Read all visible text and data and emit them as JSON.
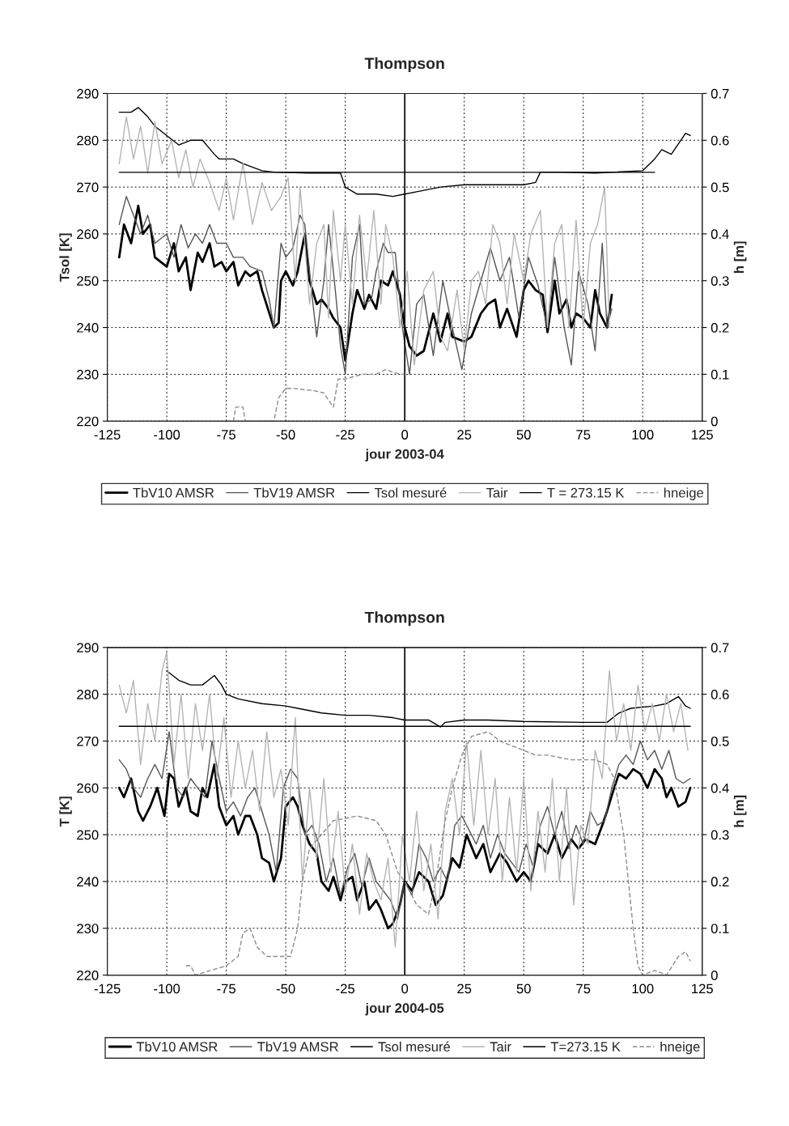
{
  "chart_data": [
    {
      "type": "line",
      "title": "Thompson",
      "xlabel": "jour 2003-04",
      "ylabel": "Tsol [K]",
      "y2label": "h [m]",
      "xlim": [
        -125,
        125
      ],
      "xticks": [
        -125,
        -100,
        -75,
        -50,
        -25,
        0,
        25,
        50,
        75,
        100,
        125
      ],
      "ylim": [
        220,
        290
      ],
      "yticks": [
        220,
        230,
        240,
        250,
        260,
        270,
        280,
        290
      ],
      "y2lim": [
        0,
        0.7
      ],
      "y2ticks": [
        0,
        0.1,
        0.2,
        0.3,
        0.4,
        0.5,
        0.6,
        0.7
      ],
      "grid": true,
      "legend": "bottom",
      "line_style": "solid",
      "ref_lines": [
        {
          "axis": "x",
          "value": 0,
          "color": "#000000",
          "line_style": "solid"
        }
      ],
      "series": [
        {
          "name": "TbV10 AMSR",
          "color": "#000000",
          "x": [
            -120,
            -118,
            -115,
            -112,
            -110,
            -107,
            -105,
            -100,
            -97,
            -95,
            -92,
            -90,
            -87,
            -85,
            -82,
            -80,
            -77,
            -75,
            -72,
            -70,
            -67,
            -65,
            -62,
            -60,
            -55,
            -53,
            -52,
            -50,
            -47,
            -45,
            -42,
            -40,
            -37,
            -35,
            -32,
            -30,
            -27,
            -25,
            -22,
            -20,
            -17,
            -15,
            -12,
            -10,
            -7,
            -5,
            -2,
            0,
            2,
            5,
            8,
            12,
            15,
            18,
            20,
            25,
            28,
            32,
            35,
            38,
            40,
            43,
            47,
            50,
            52,
            55,
            58,
            60,
            63,
            65,
            68,
            70,
            72,
            75,
            78,
            80,
            82,
            85,
            87
          ],
          "values": [
            255,
            262,
            258,
            266,
            260,
            262,
            255,
            253,
            258,
            252,
            255,
            248,
            256,
            254,
            258,
            253,
            254,
            252,
            254,
            249,
            252,
            251,
            252,
            248,
            240,
            241,
            250,
            252,
            249,
            252,
            260,
            250,
            245,
            246,
            244,
            242,
            240,
            233,
            243,
            248,
            244,
            247,
            244,
            250,
            249,
            252,
            247,
            240,
            236,
            234,
            235,
            243,
            237,
            243,
            238,
            237,
            238,
            243,
            245,
            246,
            240,
            244,
            238,
            248,
            250,
            248,
            247,
            239,
            250,
            243,
            246,
            240,
            243,
            242,
            240,
            248,
            243,
            240,
            247
          ]
        },
        {
          "name": "TbV19 AMSR",
          "color": "#555555",
          "x": [
            -120,
            -117,
            -114,
            -111,
            -108,
            -105,
            -100,
            -97,
            -94,
            -91,
            -88,
            -85,
            -82,
            -79,
            -75,
            -72,
            -68,
            -65,
            -60,
            -57,
            -55,
            -52,
            -50,
            -47,
            -44,
            -42,
            -39,
            -37,
            -34,
            -32,
            -29,
            -27,
            -25,
            -22,
            -19,
            -17,
            -14,
            -12,
            -9,
            -7,
            -4,
            -1,
            2,
            5,
            8,
            12,
            16,
            20,
            24,
            28,
            32,
            36,
            40,
            44,
            48,
            52,
            56,
            60,
            63,
            67,
            70,
            73,
            77,
            80,
            83,
            85,
            87
          ],
          "values": [
            262,
            268,
            264,
            260,
            264,
            258,
            260,
            255,
            262,
            257,
            260,
            258,
            262,
            258,
            258,
            255,
            255,
            253,
            252,
            246,
            240,
            258,
            255,
            257,
            264,
            262,
            247,
            238,
            250,
            262,
            247,
            236,
            230,
            255,
            262,
            245,
            246,
            252,
            258,
            256,
            256,
            240,
            230,
            245,
            247,
            234,
            250,
            240,
            231,
            243,
            250,
            257,
            250,
            255,
            242,
            255,
            249,
            240,
            255,
            240,
            232,
            252,
            245,
            235,
            258,
            240,
            244
          ]
        },
        {
          "name": "Tsol mesuré",
          "color": "#000000",
          "x": [
            -120,
            -115,
            -112,
            -108,
            -105,
            -100,
            -95,
            -90,
            -85,
            -80,
            -78,
            -72,
            -68,
            -60,
            -55,
            -40,
            -27,
            -25,
            -20,
            -12,
            -5,
            0,
            5,
            15,
            25,
            35,
            50,
            55,
            57,
            65,
            80,
            100,
            105,
            108,
            112,
            116,
            118,
            120
          ],
          "values": [
            286,
            286,
            287,
            285,
            283,
            281,
            279,
            280,
            280,
            277,
            276,
            276,
            275,
            273.5,
            273.2,
            273,
            273,
            270,
            268.5,
            268.5,
            268,
            268.5,
            269,
            270,
            270.5,
            270.5,
            270.5,
            271,
            273.2,
            273.2,
            273,
            273.5,
            276,
            278,
            277,
            280,
            281.5,
            281
          ]
        },
        {
          "name": "Tair",
          "color": "#b4b4b4",
          "x": [
            -120,
            -117,
            -114,
            -111,
            -108,
            -105,
            -102,
            -98,
            -95,
            -92,
            -89,
            -86,
            -82,
            -78,
            -75,
            -72,
            -68,
            -64,
            -60,
            -56,
            -52,
            -49,
            -46,
            -44,
            -42,
            -40,
            -37,
            -34,
            -32,
            -30,
            -27,
            -25,
            -22,
            -19,
            -16,
            -13,
            -10,
            -8,
            -5,
            -2,
            1,
            4,
            8,
            12,
            15,
            18,
            22,
            25,
            28,
            31,
            34,
            37,
            40,
            43,
            46,
            50,
            53,
            57,
            60,
            63,
            66,
            69,
            72,
            75,
            78,
            81,
            84,
            86
          ],
          "values": [
            275,
            285,
            276,
            283,
            273,
            284,
            275,
            280,
            272,
            278,
            270,
            276,
            271,
            265,
            272,
            263,
            275,
            262,
            271,
            265,
            268,
            272,
            250,
            270,
            258,
            245,
            258,
            262,
            242,
            265,
            250,
            262,
            245,
            264,
            250,
            265,
            245,
            262,
            255,
            240,
            252,
            232,
            248,
            252,
            238,
            235,
            248,
            235,
            250,
            252,
            245,
            262,
            258,
            245,
            260,
            250,
            260,
            265,
            240,
            258,
            262,
            240,
            263,
            240,
            258,
            262,
            270,
            240
          ]
        },
        {
          "name": "T = 273.15 K",
          "color": "#000000",
          "x": [
            -120,
            105
          ],
          "values": [
            273.15,
            273.15
          ]
        },
        {
          "name": "hneige",
          "color": "#8c8c8c",
          "axis": "y2",
          "line_style": "dashed",
          "x": [
            -75,
            -72,
            -71,
            -68,
            -67,
            -55,
            -53,
            -50,
            -47,
            -38,
            -34,
            -30,
            -28,
            -25,
            -18,
            -12,
            -8,
            -2,
            0
          ],
          "values": [
            0,
            0,
            0.03,
            0.03,
            0,
            0,
            0.05,
            0.07,
            0.07,
            0.065,
            0.06,
            0.03,
            0.09,
            0.09,
            0.1,
            0.1,
            0.11,
            0.1,
            0.1
          ]
        }
      ]
    },
    {
      "type": "line",
      "title": "Thompson",
      "xlabel": "jour 2004-05",
      "ylabel": "T [K]",
      "y2label": "h [m]",
      "xlim": [
        -125,
        125
      ],
      "xticks": [
        -125,
        -100,
        -75,
        -50,
        -25,
        0,
        25,
        50,
        75,
        100,
        125
      ],
      "ylim": [
        220,
        290
      ],
      "yticks": [
        220,
        230,
        240,
        250,
        260,
        270,
        280,
        290
      ],
      "y2lim": [
        0,
        0.7
      ],
      "y2ticks": [
        0,
        0.1,
        0.2,
        0.3,
        0.4,
        0.5,
        0.6,
        0.7
      ],
      "grid": true,
      "legend": "bottom",
      "line_style": "solid",
      "ref_lines": [
        {
          "axis": "x",
          "value": 0,
          "color": "#000000",
          "line_style": "solid"
        }
      ],
      "series": [
        {
          "name": "TbV10 AMSR",
          "color": "#000000",
          "x": [
            -120,
            -118,
            -115,
            -112,
            -110,
            -107,
            -104,
            -101,
            -99,
            -97,
            -95,
            -92,
            -90,
            -87,
            -85,
            -83,
            -80,
            -78,
            -75,
            -72,
            -70,
            -67,
            -65,
            -62,
            -60,
            -57,
            -55,
            -52,
            -50,
            -47,
            -45,
            -43,
            -40,
            -37,
            -35,
            -32,
            -30,
            -27,
            -25,
            -22,
            -20,
            -17,
            -15,
            -12,
            -10,
            -7,
            -5,
            -2,
            0,
            3,
            6,
            10,
            13,
            16,
            20,
            23,
            26,
            30,
            33,
            36,
            40,
            43,
            47,
            50,
            53,
            56,
            60,
            63,
            66,
            70,
            73,
            76,
            80,
            83,
            85,
            88,
            90,
            93,
            96,
            99,
            102,
            105,
            108,
            110,
            112,
            115,
            118,
            120
          ],
          "values": [
            260,
            258,
            262,
            255,
            253,
            256,
            260,
            254,
            263,
            262,
            256,
            260,
            255,
            254,
            260,
            258,
            265,
            256,
            252,
            254,
            250,
            254,
            254,
            250,
            245,
            244,
            240,
            245,
            256,
            258,
            256,
            252,
            248,
            246,
            240,
            238,
            241,
            236,
            240,
            241,
            236,
            240,
            234,
            236,
            234,
            230,
            231,
            235,
            240,
            238,
            242,
            240,
            235,
            237,
            245,
            243,
            250,
            245,
            248,
            242,
            246,
            244,
            240,
            242,
            240,
            248,
            246,
            250,
            245,
            249,
            247,
            249,
            248,
            252,
            255,
            260,
            263,
            262,
            264,
            263,
            260,
            264,
            262,
            258,
            260,
            256,
            257,
            260
          ]
        },
        {
          "name": "TbV19 AMSR",
          "color": "#555555",
          "x": [
            -120,
            -117,
            -114,
            -111,
            -108,
            -105,
            -102,
            -99,
            -96,
            -93,
            -90,
            -87,
            -84,
            -81,
            -78,
            -75,
            -72,
            -69,
            -66,
            -63,
            -60,
            -57,
            -54,
            -51,
            -48,
            -45,
            -42,
            -39,
            -36,
            -33,
            -30,
            -27,
            -24,
            -21,
            -18,
            -15,
            -12,
            -9,
            -6,
            -3,
            0,
            3,
            6,
            9,
            12,
            15,
            18,
            21,
            24,
            27,
            30,
            33,
            36,
            39,
            42,
            45,
            48,
            51,
            54,
            57,
            60,
            63,
            66,
            69,
            72,
            75,
            78,
            81,
            84,
            87,
            90,
            93,
            96,
            99,
            102,
            105,
            108,
            111,
            114,
            117,
            120
          ],
          "values": [
            266,
            264,
            260,
            258,
            262,
            265,
            262,
            272,
            260,
            258,
            262,
            260,
            258,
            270,
            262,
            255,
            257,
            254,
            258,
            260,
            255,
            250,
            242,
            260,
            264,
            262,
            250,
            252,
            248,
            240,
            245,
            237,
            243,
            246,
            239,
            245,
            240,
            238,
            236,
            232,
            240,
            237,
            248,
            245,
            240,
            243,
            240,
            252,
            254,
            251,
            248,
            252,
            245,
            250,
            246,
            244,
            242,
            248,
            243,
            252,
            256,
            250,
            255,
            247,
            252,
            248,
            255,
            252,
            253,
            260,
            265,
            267,
            265,
            270,
            266,
            268,
            264,
            268,
            262,
            261,
            262
          ]
        },
        {
          "name": "Tsol mesuré",
          "color": "#000000",
          "x": [
            -100,
            -95,
            -90,
            -85,
            -80,
            -77,
            -75,
            -70,
            -60,
            -50,
            -45,
            -35,
            -25,
            -15,
            -5,
            0,
            10,
            15,
            17,
            25,
            35,
            50,
            75,
            85,
            90,
            95,
            105,
            110,
            115,
            118,
            120
          ],
          "values": [
            285,
            283,
            282,
            282,
            284,
            282,
            280,
            279,
            278,
            277.5,
            277,
            276,
            275.5,
            275.5,
            275,
            274.5,
            274.5,
            273,
            274,
            274.5,
            274.5,
            274.2,
            274,
            274,
            276,
            277,
            277.5,
            278,
            279.5,
            277.5,
            277
          ]
        },
        {
          "name": "Tair",
          "color": "#b4b4b4",
          "x": [
            -120,
            -117,
            -114,
            -111,
            -108,
            -105,
            -102,
            -100,
            -97,
            -94,
            -91,
            -88,
            -85,
            -82,
            -79,
            -76,
            -73,
            -70,
            -67,
            -64,
            -61,
            -58,
            -55,
            -52,
            -49,
            -46,
            -43,
            -40,
            -37,
            -34,
            -31,
            -28,
            -25,
            -22,
            -19,
            -16,
            -13,
            -10,
            -7,
            -4,
            -1,
            2,
            5,
            8,
            11,
            14,
            17,
            20,
            23,
            26,
            29,
            32,
            35,
            38,
            41,
            44,
            47,
            50,
            53,
            56,
            59,
            62,
            65,
            68,
            71,
            74,
            77,
            80,
            83,
            86,
            89,
            92,
            95,
            98,
            101,
            104,
            107,
            110,
            113,
            116,
            119
          ],
          "values": [
            282,
            276,
            283,
            265,
            278,
            270,
            285,
            289,
            265,
            280,
            262,
            278,
            268,
            280,
            262,
            275,
            258,
            270,
            260,
            268,
            255,
            272,
            258,
            264,
            252,
            275,
            240,
            260,
            245,
            262,
            242,
            255,
            238,
            248,
            233,
            246,
            240,
            236,
            245,
            226,
            250,
            240,
            255,
            238,
            248,
            232,
            255,
            262,
            250,
            270,
            252,
            268,
            250,
            262,
            240,
            258,
            242,
            262,
            238,
            255,
            242,
            262,
            240,
            260,
            235,
            252,
            248,
            268,
            262,
            285,
            270,
            278,
            268,
            282,
            272,
            278,
            270,
            280,
            272,
            278,
            268
          ]
        },
        {
          "name": "T=273.15 K",
          "color": "#000000",
          "x": [
            -120,
            120
          ],
          "values": [
            273.15,
            273.15
          ]
        },
        {
          "name": "hneige",
          "color": "#8c8c8c",
          "axis": "y2",
          "line_style": "dashed",
          "x": [
            -92,
            -90,
            -88,
            -75,
            -70,
            -68,
            -65,
            -62,
            -58,
            -48,
            -45,
            -43,
            -40,
            -35,
            -30,
            -20,
            -12,
            -8,
            -3,
            0,
            5,
            10,
            13,
            17,
            20,
            24,
            28,
            35,
            40,
            45,
            50,
            55,
            60,
            70,
            80,
            85,
            88,
            92,
            96,
            98,
            100,
            105,
            110,
            115,
            118,
            120
          ],
          "values": [
            0.02,
            0.02,
            0,
            0.02,
            0.04,
            0.09,
            0.1,
            0.06,
            0.04,
            0.04,
            0.1,
            0.2,
            0.27,
            0.3,
            0.33,
            0.34,
            0.33,
            0.3,
            0.22,
            0.2,
            0.15,
            0.13,
            0.2,
            0.33,
            0.4,
            0.47,
            0.51,
            0.52,
            0.5,
            0.49,
            0.48,
            0.47,
            0.47,
            0.46,
            0.46,
            0.45,
            0.42,
            0.3,
            0.1,
            0.02,
            0,
            0.01,
            0,
            0.04,
            0.05,
            0.03
          ]
        }
      ]
    }
  ]
}
